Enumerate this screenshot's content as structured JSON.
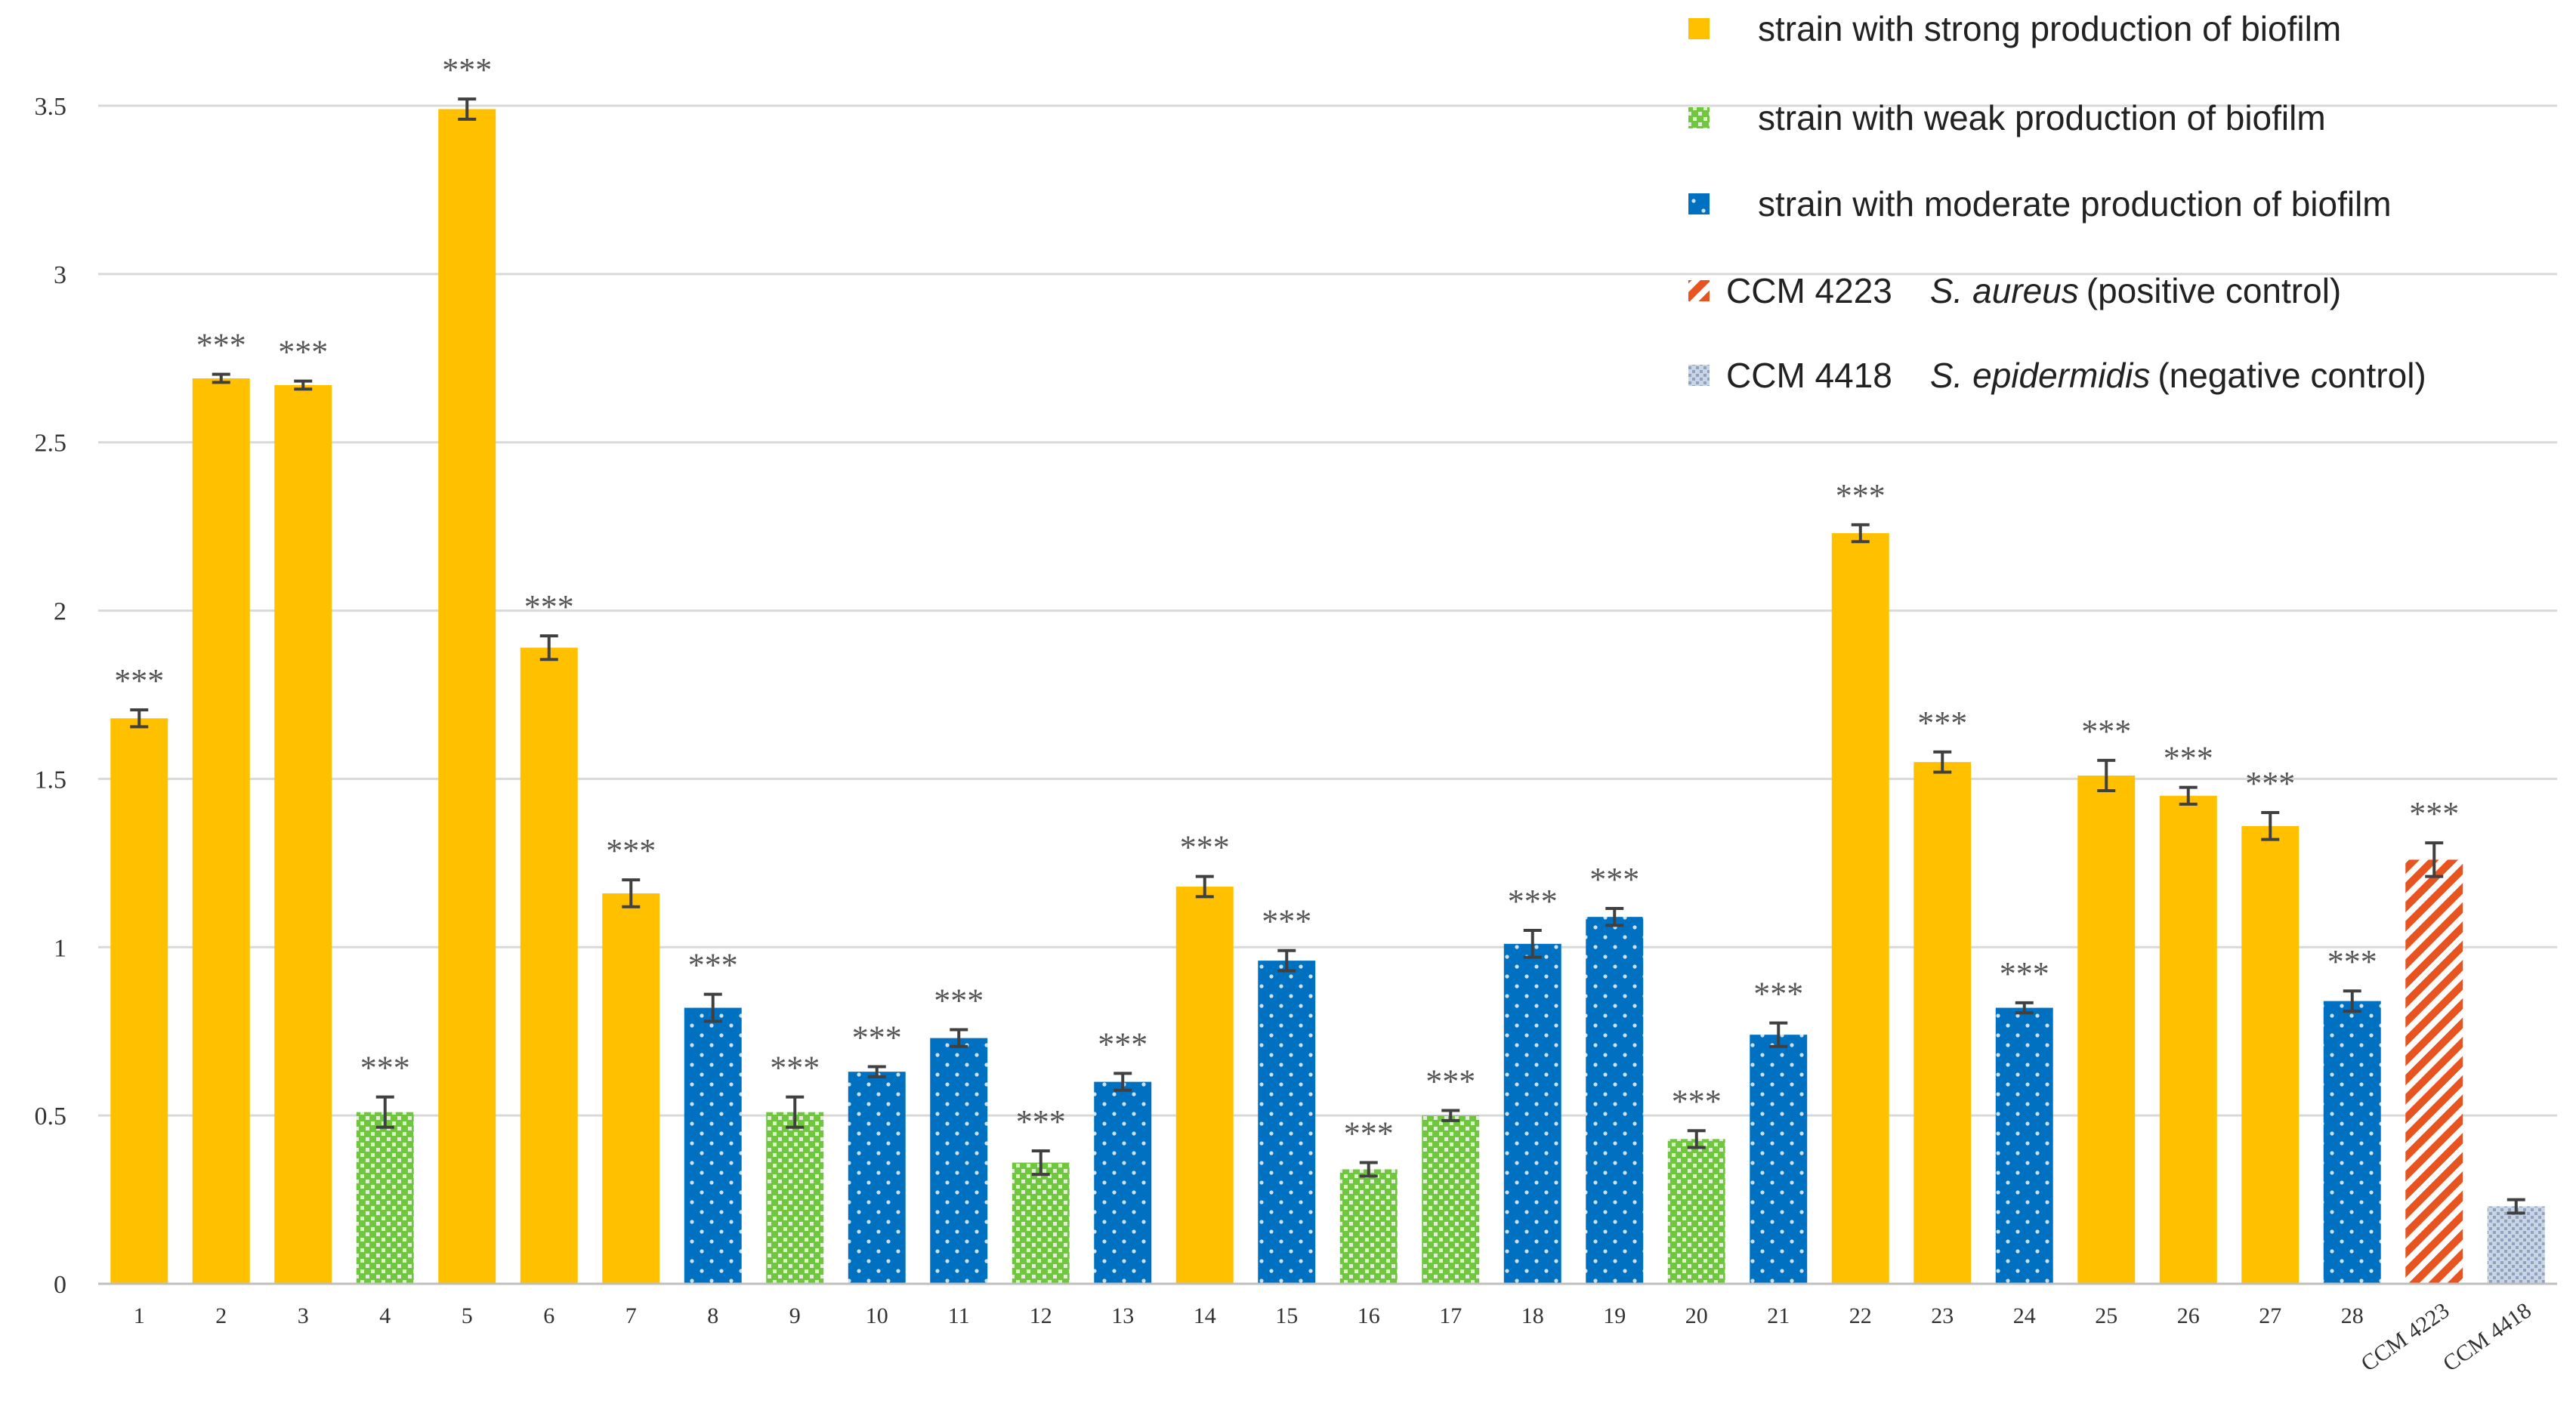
{
  "chart_data": {
    "type": "bar",
    "ylim": [
      0,
      3.5
    ],
    "yticks": [
      "0",
      "0.5",
      "1",
      "1.5",
      "2",
      "2.5",
      "3",
      "3.5"
    ],
    "grid": true,
    "legend_position": "top-right",
    "categories": [
      "1",
      "2",
      "3",
      "4",
      "5",
      "6",
      "7",
      "8",
      "9",
      "10",
      "11",
      "12",
      "13",
      "14",
      "15",
      "16",
      "17",
      "18",
      "19",
      "20",
      "21",
      "22",
      "23",
      "24",
      "25",
      "26",
      "27",
      "28",
      "CCM 4223",
      "CCM 4418"
    ],
    "values": [
      1.68,
      2.69,
      2.67,
      0.51,
      3.49,
      1.89,
      1.16,
      0.82,
      0.51,
      0.63,
      0.73,
      0.36,
      0.6,
      1.18,
      0.96,
      0.34,
      0.5,
      1.01,
      1.09,
      0.43,
      0.74,
      2.23,
      1.55,
      0.82,
      1.51,
      1.45,
      1.36,
      0.84,
      1.26,
      0.23
    ],
    "errors": [
      0.025,
      0.012,
      0.012,
      0.045,
      0.03,
      0.035,
      0.04,
      0.04,
      0.045,
      0.015,
      0.025,
      0.035,
      0.025,
      0.03,
      0.03,
      0.02,
      0.015,
      0.04,
      0.025,
      0.025,
      0.035,
      0.025,
      0.03,
      0.015,
      0.045,
      0.025,
      0.04,
      0.03,
      0.05,
      0.02
    ],
    "groups": [
      "strong",
      "strong",
      "strong",
      "weak",
      "strong",
      "strong",
      "strong",
      "moderate",
      "weak",
      "moderate",
      "moderate",
      "weak",
      "moderate",
      "strong",
      "moderate",
      "weak",
      "weak",
      "moderate",
      "moderate",
      "weak",
      "moderate",
      "strong",
      "strong",
      "moderate",
      "strong",
      "strong",
      "strong",
      "moderate",
      "positive",
      "negative"
    ],
    "significance": [
      "***",
      "***",
      "***",
      "***",
      "***",
      "***",
      "***",
      "***",
      "***",
      "***",
      "***",
      "***",
      "***",
      "***",
      "***",
      "***",
      "***",
      "***",
      "***",
      "***",
      "***",
      "***",
      "***",
      "***",
      "***",
      "***",
      "***",
      "***",
      "***",
      ""
    ],
    "colors": {
      "strong": "#FFC000",
      "weak": "#70C63F",
      "moderate": "#0070C0",
      "positive": "#E8541F",
      "negative": "#A6B6CE"
    },
    "legend": [
      {
        "key": "strong",
        "label": "strain with strong production of biofilm"
      },
      {
        "key": "weak",
        "label": "strain with weak production of biofilm"
      },
      {
        "key": "moderate",
        "label": "strain with moderate production of biofilm"
      },
      {
        "key": "positive",
        "code": "CCM 4223",
        "species": "S. aureus",
        "note": "(positive control)"
      },
      {
        "key": "negative",
        "code": "CCM 4418",
        "species": "S. epidermidis",
        "note": "(negative control)"
      }
    ]
  }
}
